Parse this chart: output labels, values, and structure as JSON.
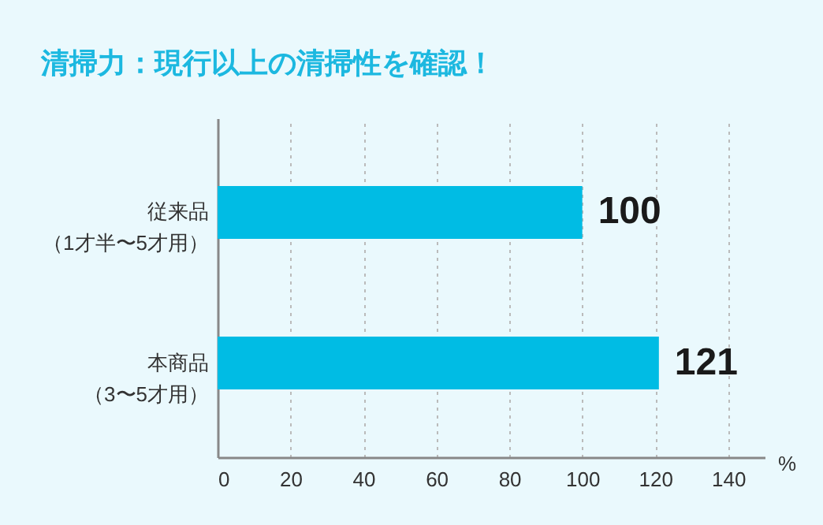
{
  "chart_data": {
    "type": "bar",
    "orientation": "horizontal",
    "title": "清掃力：現行以上の清掃性を確認！",
    "categories": [
      "従来品（1才半〜5才用）",
      "本商品（3〜5才用）"
    ],
    "values": [
      100,
      121
    ],
    "color": "#00bce4",
    "xlabel": "%",
    "xlim": [
      0,
      150
    ],
    "xticks": [
      0,
      20,
      40,
      60,
      80,
      100,
      120,
      140
    ],
    "grid": "x",
    "data_labels": true
  }
}
